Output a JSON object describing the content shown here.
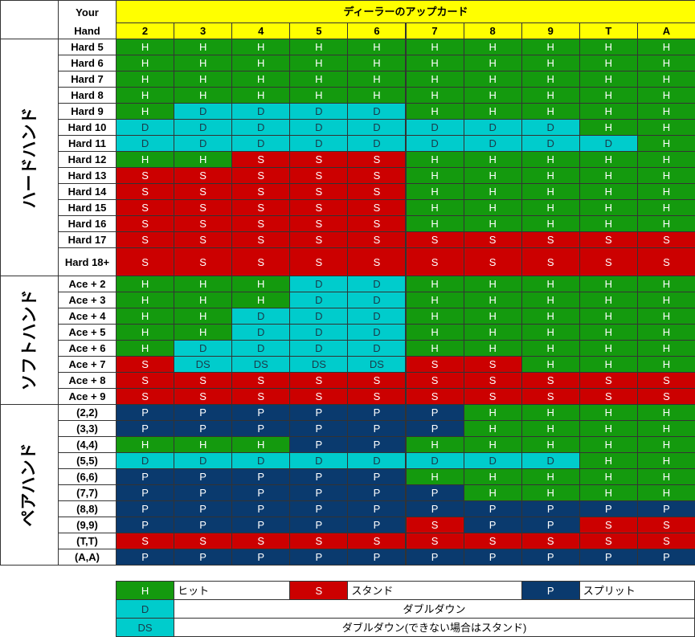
{
  "header": {
    "your_hand": [
      "Your",
      "Hand"
    ],
    "dealer_title": "ディーラーのアップカード",
    "dealer_cards": [
      "2",
      "3",
      "4",
      "5",
      "6",
      "7",
      "8",
      "9",
      "T",
      "A"
    ]
  },
  "groups": [
    {
      "label": "ハードハンド",
      "rows": [
        {
          "hand": "Hard 5",
          "actions": [
            "H",
            "H",
            "H",
            "H",
            "H",
            "H",
            "H",
            "H",
            "H",
            "H"
          ]
        },
        {
          "hand": "Hard 6",
          "actions": [
            "H",
            "H",
            "H",
            "H",
            "H",
            "H",
            "H",
            "H",
            "H",
            "H"
          ]
        },
        {
          "hand": "Hard 7",
          "actions": [
            "H",
            "H",
            "H",
            "H",
            "H",
            "H",
            "H",
            "H",
            "H",
            "H"
          ]
        },
        {
          "hand": "Hard 8",
          "actions": [
            "H",
            "H",
            "H",
            "H",
            "H",
            "H",
            "H",
            "H",
            "H",
            "H"
          ]
        },
        {
          "hand": "Hard 9",
          "actions": [
            "H",
            "D",
            "D",
            "D",
            "D",
            "H",
            "H",
            "H",
            "H",
            "H"
          ]
        },
        {
          "hand": "Hard 10",
          "actions": [
            "D",
            "D",
            "D",
            "D",
            "D",
            "D",
            "D",
            "D",
            "H",
            "H"
          ]
        },
        {
          "hand": "Hard 11",
          "actions": [
            "D",
            "D",
            "D",
            "D",
            "D",
            "D",
            "D",
            "D",
            "D",
            "H"
          ]
        },
        {
          "hand": "Hard 12",
          "actions": [
            "H",
            "H",
            "S",
            "S",
            "S",
            "H",
            "H",
            "H",
            "H",
            "H"
          ]
        },
        {
          "hand": "Hard 13",
          "actions": [
            "S",
            "S",
            "S",
            "S",
            "S",
            "H",
            "H",
            "H",
            "H",
            "H"
          ]
        },
        {
          "hand": "Hard 14",
          "actions": [
            "S",
            "S",
            "S",
            "S",
            "S",
            "H",
            "H",
            "H",
            "H",
            "H"
          ]
        },
        {
          "hand": "Hard 15",
          "actions": [
            "S",
            "S",
            "S",
            "S",
            "S",
            "H",
            "H",
            "H",
            "H",
            "H"
          ]
        },
        {
          "hand": "Hard 16",
          "actions": [
            "S",
            "S",
            "S",
            "S",
            "S",
            "H",
            "H",
            "H",
            "H",
            "H"
          ]
        },
        {
          "hand": "Hard 17",
          "actions": [
            "S",
            "S",
            "S",
            "S",
            "S",
            "S",
            "S",
            "S",
            "S",
            "S"
          ]
        },
        {
          "hand": "Hard 18+",
          "actions": [
            "S",
            "S",
            "S",
            "S",
            "S",
            "S",
            "S",
            "S",
            "S",
            "S"
          ]
        }
      ]
    },
    {
      "label": "ソフトハンド",
      "rows": [
        {
          "hand": "Ace + 2",
          "actions": [
            "H",
            "H",
            "H",
            "D",
            "D",
            "H",
            "H",
            "H",
            "H",
            "H"
          ]
        },
        {
          "hand": "Ace + 3",
          "actions": [
            "H",
            "H",
            "H",
            "D",
            "D",
            "H",
            "H",
            "H",
            "H",
            "H"
          ]
        },
        {
          "hand": "Ace + 4",
          "actions": [
            "H",
            "H",
            "D",
            "D",
            "D",
            "H",
            "H",
            "H",
            "H",
            "H"
          ]
        },
        {
          "hand": "Ace + 5",
          "actions": [
            "H",
            "H",
            "D",
            "D",
            "D",
            "H",
            "H",
            "H",
            "H",
            "H"
          ]
        },
        {
          "hand": "Ace + 6",
          "actions": [
            "H",
            "D",
            "D",
            "D",
            "D",
            "H",
            "H",
            "H",
            "H",
            "H"
          ]
        },
        {
          "hand": "Ace + 7",
          "actions": [
            "S",
            "DS",
            "DS",
            "DS",
            "DS",
            "S",
            "S",
            "H",
            "H",
            "H"
          ]
        },
        {
          "hand": "Ace + 8",
          "actions": [
            "S",
            "S",
            "S",
            "S",
            "S",
            "S",
            "S",
            "S",
            "S",
            "S"
          ]
        },
        {
          "hand": "Ace + 9",
          "actions": [
            "S",
            "S",
            "S",
            "S",
            "S",
            "S",
            "S",
            "S",
            "S",
            "S"
          ]
        }
      ]
    },
    {
      "label": "ペアハンド",
      "rows": [
        {
          "hand": "(2,2)",
          "actions": [
            "P",
            "P",
            "P",
            "P",
            "P",
            "P",
            "H",
            "H",
            "H",
            "H"
          ]
        },
        {
          "hand": "(3,3)",
          "actions": [
            "P",
            "P",
            "P",
            "P",
            "P",
            "P",
            "H",
            "H",
            "H",
            "H"
          ]
        },
        {
          "hand": "(4,4)",
          "actions": [
            "H",
            "H",
            "H",
            "P",
            "P",
            "H",
            "H",
            "H",
            "H",
            "H"
          ]
        },
        {
          "hand": "(5,5)",
          "actions": [
            "D",
            "D",
            "D",
            "D",
            "D",
            "D",
            "D",
            "D",
            "H",
            "H"
          ]
        },
        {
          "hand": "(6,6)",
          "actions": [
            "P",
            "P",
            "P",
            "P",
            "P",
            "H",
            "H",
            "H",
            "H",
            "H"
          ]
        },
        {
          "hand": "(7,7)",
          "actions": [
            "P",
            "P",
            "P",
            "P",
            "P",
            "P",
            "H",
            "H",
            "H",
            "H"
          ]
        },
        {
          "hand": "(8,8)",
          "actions": [
            "P",
            "P",
            "P",
            "P",
            "P",
            "P",
            "P",
            "P",
            "P",
            "P"
          ]
        },
        {
          "hand": "(9,9)",
          "actions": [
            "P",
            "P",
            "P",
            "P",
            "P",
            "S",
            "P",
            "P",
            "S",
            "S"
          ]
        },
        {
          "hand": "(T,T)",
          "actions": [
            "S",
            "S",
            "S",
            "S",
            "S",
            "S",
            "S",
            "S",
            "S",
            "S"
          ]
        },
        {
          "hand": "(A,A)",
          "actions": [
            "P",
            "P",
            "P",
            "P",
            "P",
            "P",
            "P",
            "P",
            "P",
            "P"
          ]
        }
      ]
    }
  ],
  "colors": {
    "H": "#149a0e",
    "S": "#cc0000",
    "D": "#00cccc",
    "DS": "#00cccc",
    "P": "#0a3a6e"
  },
  "legend": [
    {
      "code": "H",
      "text": "ヒット"
    },
    {
      "code": "S",
      "text": "スタンド"
    },
    {
      "code": "P",
      "text": "スプリット"
    },
    {
      "code": "D",
      "text": "ダブルダウン"
    },
    {
      "code": "DS",
      "text": "ダブルダウン(できない場合はスタンド)"
    }
  ]
}
